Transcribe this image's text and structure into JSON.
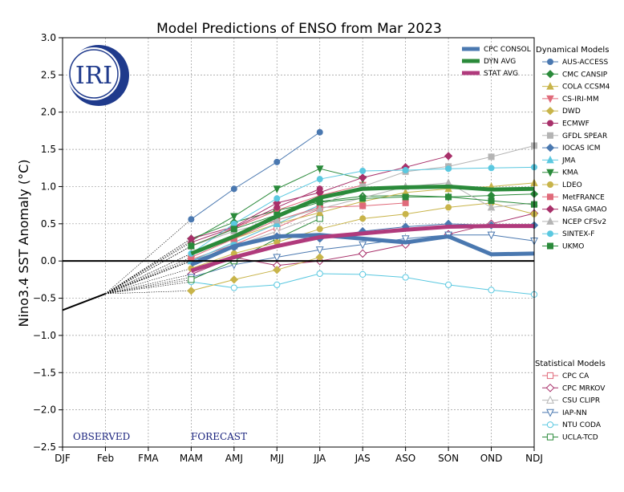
{
  "chart_data": {
    "type": "line",
    "title": "Model Predictions of ENSO from Mar 2023",
    "xlabel": "",
    "ylabel": "Nino3.4 SST Anomaly (°C)",
    "categories": [
      "DJF",
      "Feb",
      "FMA",
      "MAM",
      "AMJ",
      "MJJ",
      "JJA",
      "JAS",
      "ASO",
      "SON",
      "OND",
      "NDJ"
    ],
    "ylim": [
      -2.5,
      3.0
    ],
    "yticks": [
      "3.0",
      "2.5",
      "2.0",
      "1.5",
      "1.0",
      "0.5",
      "0.0",
      "−0.5",
      "−1.0",
      "−1.5",
      "−2.0",
      "−2.5"
    ],
    "ytick_values": [
      3.0,
      2.5,
      2.0,
      1.5,
      1.0,
      0.5,
      0.0,
      -0.5,
      -1.0,
      -1.5,
      -2.0,
      -2.5
    ],
    "grid": true,
    "observed": {
      "x": [
        "DJF",
        "Feb"
      ],
      "values": [
        -0.66,
        -0.44
      ]
    },
    "annotations": {
      "observed": "OBSERVED",
      "forecast": "FORECAST"
    },
    "logo_text": "IRI",
    "averages": [
      {
        "name": "CPC CONSOL",
        "color": "#4a78b0",
        "values": [
          null,
          null,
          null,
          -0.05,
          0.2,
          0.33,
          0.35,
          0.3,
          0.25,
          0.33,
          0.09,
          0.1
        ]
      },
      {
        "name": "DYN AVG",
        "color": "#2a8a3a",
        "values": [
          null,
          null,
          null,
          0.1,
          0.33,
          0.6,
          0.85,
          0.97,
          0.99,
          1.0,
          0.96,
          0.97
        ]
      },
      {
        "name": "STAT AVG",
        "color": "#b03a7c",
        "values": [
          null,
          null,
          null,
          -0.13,
          0.05,
          0.2,
          0.32,
          0.37,
          0.42,
          0.46,
          0.47,
          0.47
        ]
      }
    ],
    "dynamical_title": "Dynamical Models",
    "dynamical": [
      {
        "name": "AUS-ACCESS",
        "color": "#4a78b0",
        "marker": "circle",
        "values": [
          null,
          null,
          null,
          0.56,
          0.97,
          1.33,
          1.73,
          null,
          null,
          null,
          null,
          null
        ]
      },
      {
        "name": "CMC CANSIP",
        "color": "#2a8a3a",
        "marker": "diamond",
        "values": [
          null,
          null,
          null,
          0.3,
          0.52,
          0.68,
          0.8,
          0.87,
          0.88,
          0.86,
          0.88,
          0.9
        ]
      },
      {
        "name": "COLA CCSM4",
        "color": "#c8b44a",
        "marker": "triangle",
        "values": [
          null,
          null,
          null,
          0.1,
          0.3,
          0.5,
          0.65,
          0.8,
          0.92,
          0.97,
          1.0,
          1.05
        ]
      },
      {
        "name": "CS-IRI-MM",
        "color": "#e06a7a",
        "marker": "triangle-down",
        "values": [
          null,
          null,
          null,
          0.2,
          0.44,
          0.68,
          0.88,
          1.02,
          null,
          null,
          null,
          null
        ]
      },
      {
        "name": "DWD",
        "color": "#c8b44a",
        "marker": "diamond",
        "values": [
          null,
          null,
          null,
          -0.4,
          -0.25,
          -0.12,
          0.05,
          null,
          null,
          null,
          null,
          null
        ]
      },
      {
        "name": "ECMWF",
        "color": "#a8306a",
        "marker": "circle",
        "values": [
          null,
          null,
          null,
          0.25,
          0.45,
          0.72,
          0.97,
          null,
          null,
          null,
          null,
          null
        ]
      },
      {
        "name": "GFDL SPEAR",
        "color": "#b4b4b4",
        "marker": "square",
        "values": [
          null,
          null,
          null,
          0.0,
          0.25,
          0.5,
          0.75,
          1.0,
          1.2,
          1.27,
          1.4,
          1.55
        ]
      },
      {
        "name": "IOCAS ICM",
        "color": "#4a78b0",
        "marker": "diamond",
        "values": [
          null,
          null,
          null,
          0.0,
          0.18,
          0.33,
          0.3,
          0.4,
          0.46,
          0.5,
          0.48,
          0.48
        ]
      },
      {
        "name": "JMA",
        "color": "#5ac8e0",
        "marker": "triangle",
        "values": [
          null,
          null,
          null,
          0.0,
          0.25,
          0.5,
          0.75,
          null,
          null,
          null,
          null,
          null
        ]
      },
      {
        "name": "KMA",
        "color": "#2a8a3a",
        "marker": "triangle-down",
        "values": [
          null,
          null,
          null,
          0.27,
          0.6,
          0.97,
          1.24,
          1.1,
          null,
          null,
          null,
          null
        ]
      },
      {
        "name": "LDEO",
        "color": "#c8b44a",
        "marker": "circle",
        "values": [
          null,
          null,
          null,
          -0.1,
          0.1,
          0.25,
          0.43,
          0.57,
          0.63,
          0.72,
          0.78,
          0.63
        ]
      },
      {
        "name": "MetFRANCE",
        "color": "#e06a7a",
        "marker": "square",
        "values": [
          null,
          null,
          null,
          0.05,
          0.3,
          0.55,
          0.72,
          0.74,
          0.78,
          null,
          null,
          null
        ]
      },
      {
        "name": "NASA GMAO",
        "color": "#a8306a",
        "marker": "diamond",
        "values": [
          null,
          null,
          null,
          0.3,
          0.46,
          0.78,
          0.92,
          1.12,
          1.26,
          1.41,
          null,
          null
        ]
      },
      {
        "name": "NCEP CFSv2",
        "color": "#b4b4b4",
        "marker": "triangle",
        "values": [
          null,
          null,
          null,
          0.2,
          0.4,
          0.55,
          0.7,
          0.85,
          1.0,
          1.05,
          0.72,
          0.78
        ]
      },
      {
        "name": "SINTEX-F",
        "color": "#5ac8e0",
        "marker": "circle",
        "values": [
          null,
          null,
          null,
          0.1,
          0.5,
          0.84,
          1.1,
          1.21,
          1.22,
          1.24,
          1.25,
          1.26
        ]
      },
      {
        "name": "UKMO",
        "color": "#2a8a3a",
        "marker": "square",
        "values": [
          null,
          null,
          null,
          0.2,
          0.43,
          0.62,
          0.79,
          0.84,
          0.86,
          0.86,
          0.81,
          0.76
        ]
      }
    ],
    "statistical_title": "Statistical Models",
    "statistical": [
      {
        "name": "CPC CA",
        "color": "#e06a7a",
        "marker": "square-open",
        "values": [
          null,
          null,
          null,
          0.02,
          0.22,
          0.45,
          0.7,
          null,
          null,
          null,
          null,
          null
        ]
      },
      {
        "name": "CPC MRKOV",
        "color": "#a8306a",
        "marker": "diamond-open",
        "values": [
          null,
          null,
          null,
          -0.18,
          0.05,
          -0.06,
          0.0,
          0.1,
          0.22,
          0.36,
          0.5,
          0.64
        ]
      },
      {
        "name": "CSU CLIPR",
        "color": "#b4b4b4",
        "marker": "triangle-open",
        "values": [
          null,
          null,
          null,
          0.0,
          0.2,
          0.4,
          0.62,
          null,
          null,
          null,
          null,
          null
        ]
      },
      {
        "name": "IAP-NN",
        "color": "#4a78b0",
        "marker": "triangle-down-open",
        "values": [
          null,
          null,
          null,
          -0.22,
          -0.05,
          0.05,
          0.15,
          0.22,
          0.3,
          0.35,
          0.35,
          0.27
        ]
      },
      {
        "name": "NTU CODA",
        "color": "#5ac8e0",
        "marker": "circle-open",
        "values": [
          null,
          null,
          null,
          -0.28,
          -0.36,
          -0.32,
          -0.17,
          -0.18,
          -0.22,
          -0.32,
          -0.39,
          -0.45
        ]
      },
      {
        "name": "UCLA-TCD",
        "color": "#2a8a3a",
        "marker": "square-open",
        "values": [
          null,
          null,
          null,
          -0.25,
          0.0,
          0.3,
          0.57,
          null,
          null,
          null,
          null,
          null
        ]
      }
    ]
  }
}
